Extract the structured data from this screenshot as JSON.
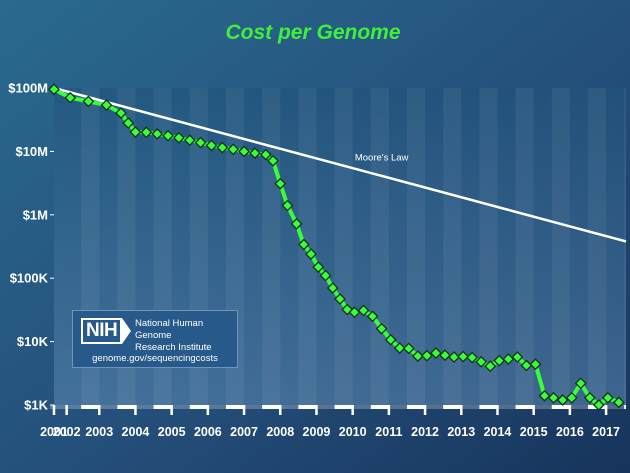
{
  "chart_data": {
    "type": "line",
    "title": "Cost per Genome",
    "y_scale": "log",
    "ylim": [
      1000,
      100000000
    ],
    "yticks": [
      {
        "value": 100000000,
        "label": "$100M"
      },
      {
        "value": 10000000,
        "label": "$10M"
      },
      {
        "value": 1000000,
        "label": "$1M"
      },
      {
        "value": 100000,
        "label": "$100K"
      },
      {
        "value": 10000,
        "label": "$10K"
      },
      {
        "value": 1000,
        "label": "$1K"
      }
    ],
    "xlim": [
      2001.75,
      2017.55
    ],
    "xticks": [
      {
        "value": 2001.75,
        "label": "2001"
      },
      {
        "value": 2002.1,
        "label": "2002"
      },
      {
        "value": 2003,
        "label": "2003"
      },
      {
        "value": 2004,
        "label": "2004"
      },
      {
        "value": 2005,
        "label": "2005"
      },
      {
        "value": 2006,
        "label": "2006"
      },
      {
        "value": 2007,
        "label": "2007"
      },
      {
        "value": 2008,
        "label": "2008"
      },
      {
        "value": 2009,
        "label": "2009"
      },
      {
        "value": 2010,
        "label": "2010"
      },
      {
        "value": 2011,
        "label": "2011"
      },
      {
        "value": 2012,
        "label": "2012"
      },
      {
        "value": 2013,
        "label": "2013"
      },
      {
        "value": 2014,
        "label": "2014"
      },
      {
        "value": 2015,
        "label": "2015"
      },
      {
        "value": 2016,
        "label": "2016"
      },
      {
        "value": 2017,
        "label": "2017"
      }
    ],
    "series": [
      {
        "color": "#39ff3a",
        "marker": "diamond",
        "points": [
          [
            2001.75,
            95300000
          ],
          [
            2002.2,
            70200000
          ],
          [
            2002.7,
            61400000
          ],
          [
            2003.2,
            53800000
          ],
          [
            2003.6,
            40200000
          ],
          [
            2003.8,
            28000000
          ],
          [
            2004.0,
            20200000
          ],
          [
            2004.3,
            20000000
          ],
          [
            2004.6,
            18900000
          ],
          [
            2004.9,
            17700000
          ],
          [
            2005.2,
            16400000
          ],
          [
            2005.5,
            15000000
          ],
          [
            2005.8,
            13800000
          ],
          [
            2006.1,
            12400000
          ],
          [
            2006.4,
            11500000
          ],
          [
            2006.7,
            10800000
          ],
          [
            2007.0,
            10000000
          ],
          [
            2007.3,
            9400000
          ],
          [
            2007.6,
            8900000
          ],
          [
            2007.8,
            7100000
          ],
          [
            2008.0,
            3100000
          ],
          [
            2008.2,
            1400000
          ],
          [
            2008.45,
            720000
          ],
          [
            2008.65,
            340000
          ],
          [
            2008.85,
            240000
          ],
          [
            2009.05,
            150000
          ],
          [
            2009.25,
            110000
          ],
          [
            2009.45,
            70000
          ],
          [
            2009.65,
            47000
          ],
          [
            2009.85,
            32000
          ],
          [
            2010.05,
            29000
          ],
          [
            2010.3,
            31000
          ],
          [
            2010.55,
            25000
          ],
          [
            2010.8,
            16000
          ],
          [
            2011.05,
            10700
          ],
          [
            2011.3,
            7900
          ],
          [
            2011.55,
            7800
          ],
          [
            2011.8,
            5900
          ],
          [
            2012.05,
            6000
          ],
          [
            2012.3,
            6600
          ],
          [
            2012.55,
            6100
          ],
          [
            2012.8,
            5700
          ],
          [
            2013.05,
            5800
          ],
          [
            2013.3,
            5600
          ],
          [
            2013.55,
            4800
          ],
          [
            2013.8,
            4100
          ],
          [
            2014.05,
            5000
          ],
          [
            2014.3,
            5300
          ],
          [
            2014.55,
            5700
          ],
          [
            2014.8,
            4200
          ],
          [
            2015.05,
            4400
          ],
          [
            2015.3,
            1400
          ],
          [
            2015.55,
            1300
          ],
          [
            2015.8,
            1200
          ],
          [
            2016.05,
            1300
          ],
          [
            2016.3,
            2200
          ],
          [
            2016.55,
            1300
          ],
          [
            2016.8,
            1000
          ],
          [
            2017.05,
            1300
          ],
          [
            2017.35,
            1100
          ]
        ]
      },
      {
        "name": "Moore's Law",
        "color": "#ffffff",
        "points": [
          [
            2001.75,
            100000000
          ],
          [
            2017.55,
            380000
          ]
        ]
      }
    ],
    "annotations": [
      {
        "text": "Moore's Law",
        "x": 2010.8,
        "y": 10000000
      }
    ],
    "background_gradient": [
      "#1d4f73",
      "#4d7da5"
    ],
    "accent_color": "#39ff3a"
  },
  "logo": {
    "letters": "NIH",
    "name_line1": "National Human Genome",
    "name_line2": "Research Institute",
    "url": "genome.gov/sequencingcosts"
  }
}
